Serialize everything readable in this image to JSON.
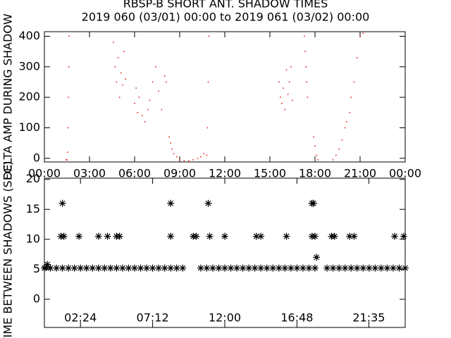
{
  "chart_data": [
    {
      "type": "scatter",
      "title": "RBSP-B SHORT ANT. SHADOW TIMES",
      "subtitle": "2019 060 (03/01) 00:00 to 2019 061 (03/02) 00:00",
      "y_label": "DELTA AMP DURING SHADOW",
      "color": "#e8231a",
      "xlim": [
        0,
        24
      ],
      "ylim": [
        -12,
        415
      ],
      "xticks": [
        {
          "value": 0,
          "label": "00:00"
        },
        {
          "value": 3,
          "label": "03:00"
        },
        {
          "value": 6,
          "label": "06:00"
        },
        {
          "value": 9,
          "label": "09:00"
        },
        {
          "value": 12,
          "label": "12:00"
        },
        {
          "value": 15,
          "label": "15:00"
        },
        {
          "value": 18,
          "label": "18:00"
        },
        {
          "value": 21,
          "label": "21:00"
        },
        {
          "value": 24,
          "label": "00:00"
        }
      ],
      "yticks": [
        0,
        100,
        200,
        300,
        400
      ],
      "x": [
        1.45,
        1.5,
        1.55,
        1.58,
        1.6,
        1.62,
        1.64,
        4.6,
        4.7,
        4.8,
        4.9,
        5.0,
        5.1,
        5.2,
        5.3,
        5.4,
        6.0,
        6.1,
        6.2,
        6.3,
        6.5,
        6.7,
        6.9,
        7.0,
        7.2,
        7.4,
        7.6,
        7.8,
        8.0,
        8.1,
        8.3,
        8.4,
        8.5,
        8.6,
        8.8,
        9.0,
        9.3,
        9.6,
        9.9,
        10.2,
        10.4,
        10.6,
        10.8,
        10.85,
        10.9,
        10.95,
        15.6,
        15.7,
        15.8,
        15.9,
        16.0,
        16.1,
        16.2,
        16.3,
        16.4,
        16.5,
        17.3,
        17.35,
        17.4,
        17.45,
        17.5,
        17.9,
        18.0,
        18.1,
        18.2,
        19.2,
        19.4,
        19.6,
        19.8,
        20.0,
        20.1,
        20.3,
        20.4,
        20.6,
        20.8,
        21.0,
        21.2
      ],
      "y": [
        -5,
        -5,
        20,
        100,
        200,
        300,
        400,
        380,
        300,
        250,
        330,
        200,
        280,
        240,
        350,
        260,
        180,
        230,
        150,
        200,
        140,
        120,
        160,
        190,
        250,
        300,
        220,
        160,
        270,
        250,
        70,
        50,
        30,
        15,
        5,
        -5,
        -8,
        -8,
        -5,
        0,
        5,
        15,
        10,
        100,
        250,
        400,
        250,
        200,
        180,
        230,
        160,
        290,
        210,
        250,
        300,
        190,
        400,
        350,
        300,
        250,
        200,
        70,
        40,
        10,
        -5,
        -5,
        10,
        30,
        60,
        100,
        120,
        150,
        200,
        250,
        330,
        400,
        410
      ]
    },
    {
      "type": "scatter",
      "y_label": "TIME BETWEEN SHADOWS (SEC)",
      "color": "#000000",
      "marker": "asterisk",
      "xlim": [
        0,
        24
      ],
      "ylim": [
        -4.7,
        20.2
      ],
      "xticks": [
        {
          "value": 2.4,
          "label": "02:24"
        },
        {
          "value": 7.2,
          "label": "07:12"
        },
        {
          "value": 12,
          "label": "12:00"
        },
        {
          "value": 16.8,
          "label": "16:48"
        },
        {
          "value": 21.583,
          "label": "21:35"
        }
      ],
      "yticks": [
        0,
        5,
        10,
        15,
        20
      ],
      "x": [
        0,
        0.4,
        0.8,
        1.2,
        1.6,
        2.0,
        2.4,
        2.8,
        3.2,
        3.6,
        4.0,
        4.4,
        4.8,
        5.2,
        5.6,
        6.0,
        6.4,
        6.8,
        7.2,
        7.6,
        8.0,
        8.4,
        8.8,
        9.2,
        10.4,
        10.8,
        11.2,
        11.6,
        12.0,
        12.4,
        12.8,
        13.2,
        13.6,
        14.0,
        14.4,
        14.8,
        15.2,
        15.6,
        16.0,
        16.4,
        16.8,
        17.2,
        17.6,
        18.0,
        18.8,
        19.2,
        19.6,
        20.0,
        20.4,
        20.8,
        21.2,
        21.6,
        22.0,
        22.4,
        22.8,
        23.2,
        23.6,
        24.0,
        0.1,
        0.2,
        1.2,
        1.1,
        1.3,
        2.3,
        3.6,
        4.2,
        4.8,
        5.0,
        8.4,
        8.4,
        9.9,
        10.1,
        10.9,
        11.0,
        12.0,
        14.1,
        14.4,
        16.1,
        17.8,
        17.9,
        17.8,
        18.0,
        18.1,
        19.1,
        19.3,
        20.3,
        20.6,
        23.3,
        23.9
      ],
      "y": [
        5.2,
        5.2,
        5.2,
        5.2,
        5.2,
        5.2,
        5.2,
        5.2,
        5.2,
        5.2,
        5.2,
        5.2,
        5.2,
        5.2,
        5.2,
        5.2,
        5.2,
        5.2,
        5.2,
        5.2,
        5.2,
        5.2,
        5.2,
        5.2,
        5.2,
        5.2,
        5.2,
        5.2,
        5.2,
        5.2,
        5.2,
        5.2,
        5.2,
        5.2,
        5.2,
        5.2,
        5.2,
        5.2,
        5.2,
        5.2,
        5.2,
        5.2,
        5.2,
        5.2,
        5.2,
        5.2,
        5.2,
        5.2,
        5.2,
        5.2,
        5.2,
        5.2,
        5.2,
        5.2,
        5.2,
        5.2,
        5.2,
        5.2,
        5.3,
        5.8,
        16,
        10.5,
        10.5,
        10.5,
        10.5,
        10.5,
        10.5,
        10.5,
        16,
        10.5,
        10.5,
        10.5,
        16,
        10.5,
        10.5,
        10.5,
        10.5,
        10.5,
        16,
        16,
        10.5,
        10.5,
        7,
        10.5,
        10.5,
        10.5,
        10.5,
        10.5,
        10.5
      ]
    }
  ]
}
